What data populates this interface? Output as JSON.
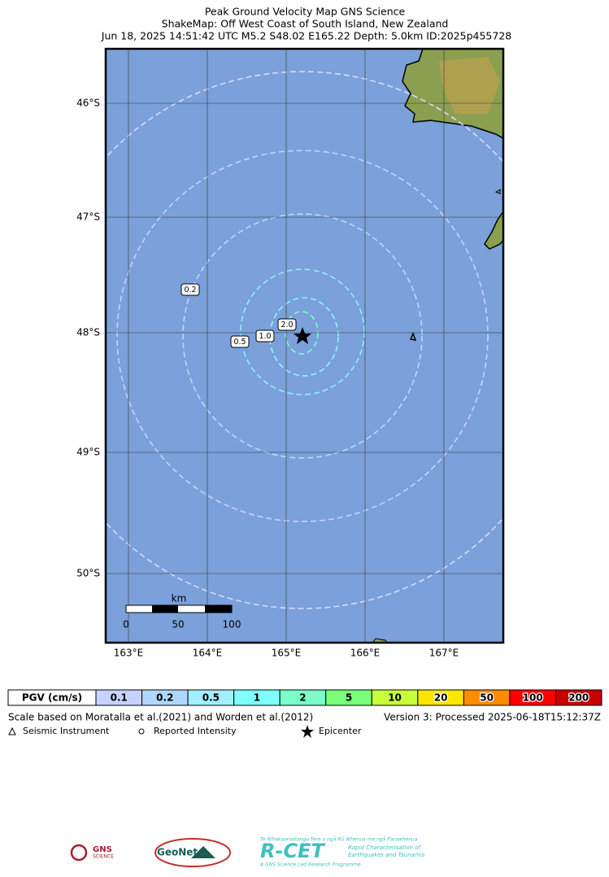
{
  "header": {
    "title_lines": [
      "Peak Ground Velocity Map GNS Science",
      "ShakeMap: Off West Coast of South Island, New Zealand",
      "Jun 18, 2025 14:51:42 UTC M5.2 S48.02 E165.22 Depth: 5.0km ID:2025p455728"
    ]
  },
  "map": {
    "lat_labels": [
      "46°S",
      "47°S",
      "48°S",
      "49°S",
      "50°S"
    ],
    "lon_labels": [
      "163°E",
      "164°E",
      "165°E",
      "166°E",
      "167°E"
    ],
    "contour_labels": [
      "0.2",
      "2.0",
      "1.0",
      "0.5"
    ],
    "scale_bar": {
      "unit": "km",
      "labels": [
        "0",
        "50",
        "100"
      ]
    }
  },
  "legend_bar": {
    "title": "PGV (cm/s)",
    "bins": [
      {
        "label": "0.1",
        "color": "#c8d2ff"
      },
      {
        "label": "0.2",
        "color": "#aed7ff"
      },
      {
        "label": "0.5",
        "color": "#a2efff"
      },
      {
        "label": "1",
        "color": "#80ffff"
      },
      {
        "label": "2",
        "color": "#7affc9"
      },
      {
        "label": "5",
        "color": "#7aff7a"
      },
      {
        "label": "10",
        "color": "#c8ff3c"
      },
      {
        "label": "20",
        "color": "#ffe500"
      },
      {
        "label": "50",
        "color": "#ff8c00"
      },
      {
        "label": "100",
        "color": "#ff0000"
      },
      {
        "label": "200",
        "color": "#c80000"
      }
    ]
  },
  "footer": {
    "note": "Scale based on Moratalla et al.(2021) and Worden et al.(2012)",
    "version": "Version 3: Processed 2025-06-18T15:12:37Z",
    "symbols": [
      "Seismic Instrument",
      "Reported Intensity",
      "Epicenter"
    ]
  },
  "logos": {
    "gns": "GNS",
    "gns_sub": "SCIENCE",
    "geonet": "GeoNet",
    "rcet": "R-CET",
    "rcet_top": "Te Whakaaroatanga Tere o ngā Rū Whenua me ngā Parawhenua",
    "rcet_side1": "Rapid Characterisation of",
    "rcet_side2": "Earthquakes and Tsunamis",
    "rcet_bottom": "A GNS Science Led Research Programme"
  }
}
